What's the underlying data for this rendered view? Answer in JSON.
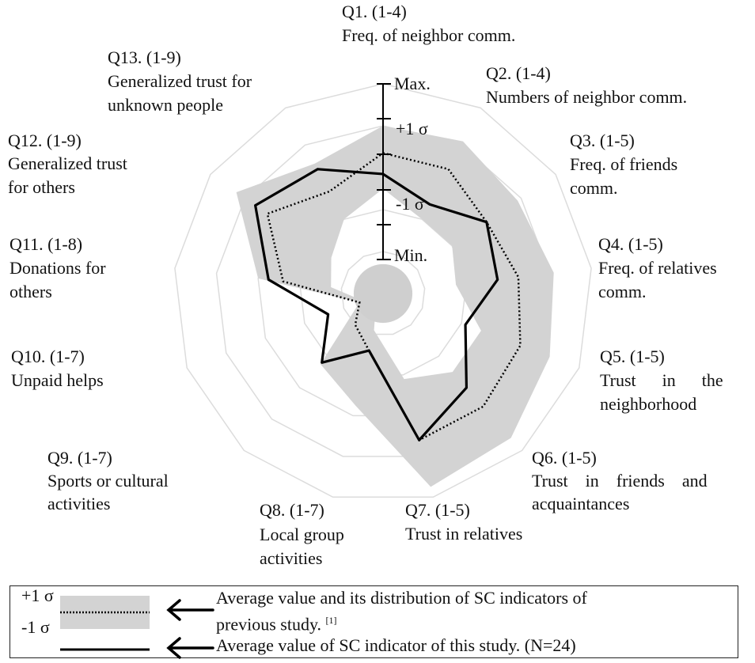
{
  "chart_data": {
    "type": "radar",
    "axes": [
      {
        "id": "Q1",
        "line1": "Q1. (1-4)",
        "line2": "Freq. of neighbor comm.",
        "line3": ""
      },
      {
        "id": "Q2",
        "line1": "Q2. (1-4)",
        "line2": "Numbers of neighbor comm.",
        "line3": ""
      },
      {
        "id": "Q3",
        "line1": "Q3. (1-5)",
        "line2": "Freq. of friends",
        "line3": "comm."
      },
      {
        "id": "Q4",
        "line1": "Q4. (1-5)",
        "line2": "Freq. of relatives",
        "line3": "comm."
      },
      {
        "id": "Q5",
        "line1": "Q5. (1-5)",
        "line2": "Trust      in      the",
        "line3": "neighborhood"
      },
      {
        "id": "Q6",
        "line1": "Q6. (1-5)",
        "line2": "Trust    in    friends    and",
        "line3": "acquaintances"
      },
      {
        "id": "Q7",
        "line1": "Q7. (1-5)",
        "line2": "Trust in relatives",
        "line3": ""
      },
      {
        "id": "Q8",
        "line1": "Q8. (1-7)",
        "line2": "Local group",
        "line3": "activities"
      },
      {
        "id": "Q9",
        "line1": "Q9. (1-7)",
        "line2": "Sports or cultural",
        "line3": "activities"
      },
      {
        "id": "Q10",
        "line1": "Q10. (1-7)",
        "line2": "Unpaid helps",
        "line3": ""
      },
      {
        "id": "Q11",
        "line1": "Q11. (1-8)",
        "line2": "Donations for",
        "line3": "others"
      },
      {
        "id": "Q12",
        "line1": "Q12. (1-9)",
        "line2": "Generalized trust",
        "line3": "for others"
      },
      {
        "id": "Q13",
        "line1": "Q13. (1-9)",
        "line2": "Generalized trust for",
        "line3": "unknown people"
      }
    ],
    "scale_labels": {
      "max": "Max.",
      "plus1": "+1 σ",
      "minus1": "-1 σ",
      "min": "Min."
    },
    "range": [
      0,
      1
    ],
    "series": [
      {
        "key": "prev_plus1",
        "values": [
          0.8,
          0.82,
          0.78,
          0.82,
          0.85,
          0.92,
          0.95,
          0.55,
          0.45,
          0.12,
          0.6,
          0.85,
          0.7
        ]
      },
      {
        "key": "prev_minus1",
        "values": [
          0.5,
          0.4,
          0.4,
          0.35,
          0.5,
          0.5,
          0.42,
          0.18,
          0.05,
          0.1,
          0.25,
          0.3,
          0.4
        ]
      },
      {
        "key": "prev_avg",
        "values": [
          0.67,
          0.67,
          0.6,
          0.65,
          0.7,
          0.72,
          0.72,
          0.28,
          0.2,
          0.12,
          0.48,
          0.67,
          0.55
        ]
      },
      {
        "key": "this_study",
        "values": [
          0.57,
          0.48,
          0.6,
          0.55,
          0.42,
          0.6,
          0.72,
          0.28,
          0.44,
          0.28,
          0.55,
          0.74,
          0.67
        ]
      }
    ],
    "inner_circle_value": 0.14,
    "grid_levels": 5
  },
  "legend": {
    "plus1": "+1 σ",
    "minus1": "-1 σ",
    "prev_line1": "Average value and its distribution of SC indicators of",
    "prev_line2": "previous study.",
    "prev_ref": "[1]",
    "this_line": "Average value of SC indicator of this study. (N=24)"
  },
  "colors": {
    "band": "#d3d3d3",
    "grid": "#dcdcdc",
    "line": "#000000",
    "inner": "#cfcfcf"
  }
}
